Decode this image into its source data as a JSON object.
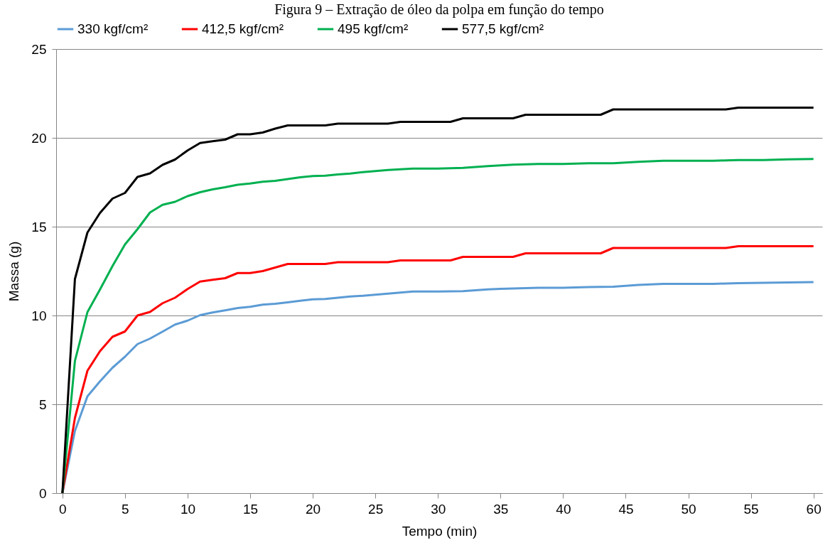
{
  "chart_data": {
    "type": "line",
    "title": "Figura 9 – Extração de óleo da polpa em função do tempo",
    "xlabel": "Tempo (min)",
    "ylabel": "Massa (g)",
    "x": [
      0,
      1,
      2,
      3,
      4,
      5,
      6,
      7,
      8,
      9,
      10,
      11,
      12,
      13,
      14,
      15,
      16,
      17,
      18,
      19,
      20,
      21,
      22,
      23,
      24,
      25,
      26,
      27,
      28,
      29,
      30,
      31,
      32,
      33,
      34,
      35,
      36,
      37,
      38,
      39,
      40,
      41,
      42,
      43,
      44,
      45,
      46,
      47,
      48,
      49,
      50,
      51,
      52,
      53,
      54,
      55,
      56,
      57,
      58,
      59,
      60
    ],
    "series": [
      {
        "name": "330 kgf/cm²",
        "color": "#5b9bd5",
        "values": [
          0,
          3.5,
          5.45,
          6.29,
          7.06,
          7.68,
          8.39,
          8.7,
          9.09,
          9.49,
          9.71,
          10.02,
          10.17,
          10.29,
          10.42,
          10.49,
          10.61,
          10.66,
          10.74,
          10.83,
          10.91,
          10.93,
          11.0,
          11.07,
          11.11,
          11.17,
          11.23,
          11.29,
          11.35,
          11.35,
          11.35,
          11.36,
          11.37,
          11.42,
          11.47,
          11.5,
          11.52,
          11.54,
          11.56,
          11.56,
          11.56,
          11.58,
          11.6,
          11.61,
          11.62,
          11.67,
          11.72,
          11.75,
          11.78,
          11.78,
          11.78,
          11.78,
          11.78,
          11.8,
          11.82,
          11.83,
          11.84,
          11.85,
          11.86,
          11.87,
          11.88
        ]
      },
      {
        "name": "412,5 kgf/cm²",
        "color": "#ff0000",
        "values": [
          0,
          4.23,
          6.89,
          7.99,
          8.8,
          9.1,
          10.0,
          10.2,
          10.69,
          11.0,
          11.49,
          11.91,
          12.01,
          12.1,
          12.39,
          12.39,
          12.5,
          12.7,
          12.9,
          12.9,
          12.9,
          12.9,
          13.0,
          13.0,
          13.0,
          13.0,
          13.0,
          13.1,
          13.1,
          13.1,
          13.1,
          13.1,
          13.3,
          13.3,
          13.3,
          13.3,
          13.3,
          13.5,
          13.5,
          13.5,
          13.5,
          13.5,
          13.5,
          13.5,
          13.8,
          13.8,
          13.8,
          13.8,
          13.8,
          13.8,
          13.8,
          13.8,
          13.8,
          13.8,
          13.9,
          13.9,
          13.9,
          13.9,
          13.9,
          13.9,
          13.9
        ]
      },
      {
        "name": "495 kgf/cm²",
        "color": "#00b050",
        "values": [
          0,
          7.44,
          10.19,
          11.46,
          12.78,
          14.0,
          14.86,
          15.8,
          16.23,
          16.4,
          16.72,
          16.94,
          17.1,
          17.22,
          17.36,
          17.43,
          17.53,
          17.58,
          17.68,
          17.78,
          17.85,
          17.87,
          17.94,
          17.99,
          18.07,
          18.13,
          18.19,
          18.23,
          18.27,
          18.27,
          18.27,
          18.29,
          18.31,
          18.36,
          18.41,
          18.45,
          18.49,
          18.51,
          18.53,
          18.53,
          18.53,
          18.55,
          18.57,
          18.57,
          18.57,
          18.61,
          18.65,
          18.68,
          18.71,
          18.71,
          18.71,
          18.71,
          18.71,
          18.73,
          18.75,
          18.75,
          18.75,
          18.77,
          18.79,
          18.8,
          18.81
        ]
      },
      {
        "name": "577,5 kgf/cm²",
        "color": "#000000",
        "values": [
          0,
          12.05,
          14.67,
          15.77,
          16.58,
          16.9,
          17.8,
          18.0,
          18.48,
          18.78,
          19.29,
          19.71,
          19.81,
          19.9,
          20.2,
          20.2,
          20.3,
          20.52,
          20.7,
          20.7,
          20.7,
          20.7,
          20.8,
          20.8,
          20.8,
          20.8,
          20.8,
          20.9,
          20.9,
          20.9,
          20.9,
          20.9,
          21.1,
          21.1,
          21.1,
          21.1,
          21.1,
          21.3,
          21.3,
          21.3,
          21.3,
          21.3,
          21.3,
          21.3,
          21.6,
          21.6,
          21.6,
          21.6,
          21.6,
          21.6,
          21.6,
          21.6,
          21.6,
          21.6,
          21.7,
          21.7,
          21.7,
          21.7,
          21.7,
          21.7,
          21.7
        ]
      }
    ],
    "xlim": [
      -0.5,
      60.7
    ],
    "xticks": [
      0,
      5,
      10,
      15,
      20,
      25,
      30,
      35,
      40,
      45,
      50,
      55,
      60
    ],
    "ylim": [
      0,
      25
    ],
    "yticks": [
      0,
      5,
      10,
      15,
      20,
      25
    ],
    "grid": "y",
    "legend": "top",
    "marker": "none",
    "line_style": "solid"
  }
}
